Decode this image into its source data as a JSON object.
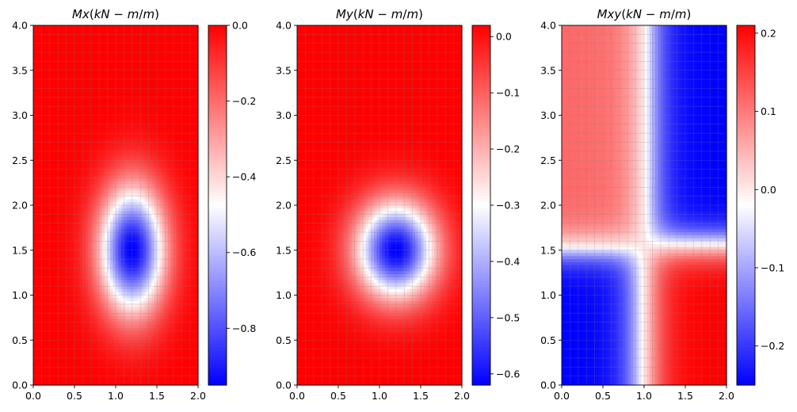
{
  "chart_data": [
    {
      "type": "heatmap",
      "title": "Mx(kN-m/m)",
      "title_parts": [
        "Mx",
        "(",
        "kN",
        " − ",
        "m",
        "/",
        "m",
        ")"
      ],
      "xlabel": "",
      "ylabel": "",
      "xlim": [
        0.0,
        2.0
      ],
      "ylim": [
        0.0,
        4.0
      ],
      "x_ticks": [
        0.0,
        0.5,
        1.0,
        1.5,
        2.0
      ],
      "x_tick_labels": [
        "0.0",
        "0.5",
        "1.0",
        "1.5",
        "2.0"
      ],
      "y_ticks": [
        0.0,
        0.5,
        1.0,
        1.5,
        2.0,
        2.5,
        3.0,
        3.5,
        4.0
      ],
      "y_tick_labels": [
        "0.0",
        "0.5",
        "1.0",
        "1.5",
        "2.0",
        "2.5",
        "3.0",
        "3.5",
        "4.0"
      ],
      "grid": true,
      "grid_cells": [
        20,
        40
      ],
      "colormap": "bwr",
      "field": {
        "kind": "bump",
        "center": [
          1.2,
          1.5
        ],
        "sigma": [
          0.28,
          0.5
        ],
        "min": -0.95,
        "max": 0.0
      },
      "colorbar": {
        "vmin": -0.95,
        "vmax": 0.0,
        "ticks": [
          0.0,
          -0.2,
          -0.4,
          -0.6,
          -0.8
        ],
        "tick_labels": [
          "0.0",
          "−0.2",
          "−0.4",
          "−0.6",
          "−0.8"
        ]
      }
    },
    {
      "type": "heatmap",
      "title": "My(kN-m/m)",
      "title_parts": [
        "My",
        "(",
        "kN",
        " − ",
        "m",
        "/",
        "m",
        ")"
      ],
      "xlabel": "",
      "ylabel": "",
      "xlim": [
        0.0,
        2.0
      ],
      "ylim": [
        0.0,
        4.0
      ],
      "x_ticks": [
        0.0,
        0.5,
        1.0,
        1.5,
        2.0
      ],
      "x_tick_labels": [
        "0.0",
        "0.5",
        "1.0",
        "1.5",
        "2.0"
      ],
      "y_ticks": [
        0.0,
        0.5,
        1.0,
        1.5,
        2.0,
        2.5,
        3.0,
        3.5,
        4.0
      ],
      "y_tick_labels": [
        "0.0",
        "0.5",
        "1.0",
        "1.5",
        "2.0",
        "2.5",
        "3.0",
        "3.5",
        "4.0"
      ],
      "grid": true,
      "grid_cells": [
        20,
        40
      ],
      "colormap": "bwr",
      "field": {
        "kind": "bump",
        "center": [
          1.2,
          1.5
        ],
        "sigma": [
          0.34,
          0.38
        ],
        "min": -0.62,
        "max": 0.02
      },
      "colorbar": {
        "vmin": -0.62,
        "vmax": 0.02,
        "ticks": [
          0.0,
          -0.1,
          -0.2,
          -0.3,
          -0.4,
          -0.5,
          -0.6
        ],
        "tick_labels": [
          "0.0",
          "−0.1",
          "−0.2",
          "−0.3",
          "−0.4",
          "−0.5",
          "−0.6"
        ]
      }
    },
    {
      "type": "heatmap",
      "title": "Mxy(kN-m/m)",
      "title_parts": [
        "Mxy",
        "(",
        "kN",
        " − ",
        "m",
        "/",
        "m",
        ")"
      ],
      "xlabel": "",
      "ylabel": "",
      "xlim": [
        0.0,
        2.0
      ],
      "ylim": [
        0.0,
        4.0
      ],
      "x_ticks": [
        0.0,
        0.5,
        1.0,
        1.5,
        2.0
      ],
      "x_tick_labels": [
        "0.0",
        "0.5",
        "1.0",
        "1.5",
        "2.0"
      ],
      "y_ticks": [
        0.0,
        0.5,
        1.0,
        1.5,
        2.0,
        2.5,
        3.0,
        3.5,
        4.0
      ],
      "y_tick_labels": [
        "0.0",
        "0.5",
        "1.0",
        "1.5",
        "2.0",
        "2.5",
        "3.0",
        "3.5",
        "4.0"
      ],
      "grid": true,
      "grid_cells": [
        20,
        40
      ],
      "colormap": "bwr",
      "field": {
        "kind": "quadrant",
        "x0": 1.0,
        "y0": 1.55,
        "min": -0.25,
        "max": 0.21
      },
      "colorbar": {
        "vmin": -0.25,
        "vmax": 0.21,
        "ticks": [
          0.2,
          0.1,
          0.0,
          -0.1,
          -0.2
        ],
        "tick_labels": [
          "0.2",
          "0.1",
          "0.0",
          "−0.1",
          "−0.2"
        ]
      }
    }
  ],
  "colors": {
    "blue": "#0000ff",
    "white": "#ffffff",
    "red": "#ff0000",
    "grid": "#808080",
    "axis": "#000000"
  }
}
